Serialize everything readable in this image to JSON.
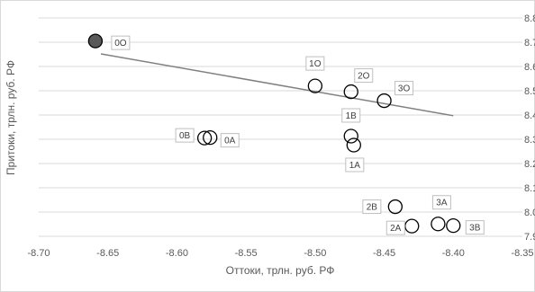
{
  "chart_data": {
    "type": "scatter",
    "xlabel": "Оттоки, трлн. руб. РФ",
    "ylabel": "Притоки, трлн. руб. РФ",
    "xlim": [
      -8.7,
      -8.35
    ],
    "ylim": [
      7.9,
      8.7
    ],
    "x_ticks": [
      "-8.70",
      "-8.65",
      "-8.60",
      "-8.55",
      "-8.50",
      "-8.45",
      "-8.40",
      "-8.35"
    ],
    "y_ticks": [
      "7.90",
      "8.00",
      "8.10",
      "8.20",
      "8.30",
      "8.40",
      "8.50",
      "8.60",
      "8.70",
      "8.80"
    ],
    "y_axis_side": "right",
    "grid": "horizontal",
    "points": [
      {
        "label": "0O",
        "x": -8.659,
        "y": 8.705,
        "filled": true
      },
      {
        "label": "1O",
        "x": -8.5,
        "y": 8.52,
        "filled": false
      },
      {
        "label": "2O",
        "x": -8.474,
        "y": 8.496,
        "filled": false
      },
      {
        "label": "3O",
        "x": -8.45,
        "y": 8.459,
        "filled": false
      },
      {
        "label": "0B",
        "x": -8.58,
        "y": 8.305,
        "filled": false
      },
      {
        "label": "0A",
        "x": -8.576,
        "y": 8.307,
        "filled": false
      },
      {
        "label": "1B",
        "x": -8.474,
        "y": 8.313,
        "filled": false
      },
      {
        "label": "1A",
        "x": -8.472,
        "y": 8.276,
        "filled": false
      },
      {
        "label": "2B",
        "x": -8.442,
        "y": 8.022,
        "filled": false
      },
      {
        "label": "2A",
        "x": -8.43,
        "y": 7.942,
        "filled": false
      },
      {
        "label": "3A",
        "x": -8.411,
        "y": 7.951,
        "filled": false
      },
      {
        "label": "3B",
        "x": -8.4,
        "y": 7.944,
        "filled": false
      }
    ],
    "trendline": {
      "x": [
        -8.655,
        -8.4
      ],
      "y": [
        8.652,
        8.397
      ]
    },
    "colors": {
      "grid": "#d9d9d9",
      "marker_edge": "#000000",
      "marker_fill_highlight": "#595959",
      "trendline": "#808080",
      "label_border": "#bfbfbf"
    }
  }
}
